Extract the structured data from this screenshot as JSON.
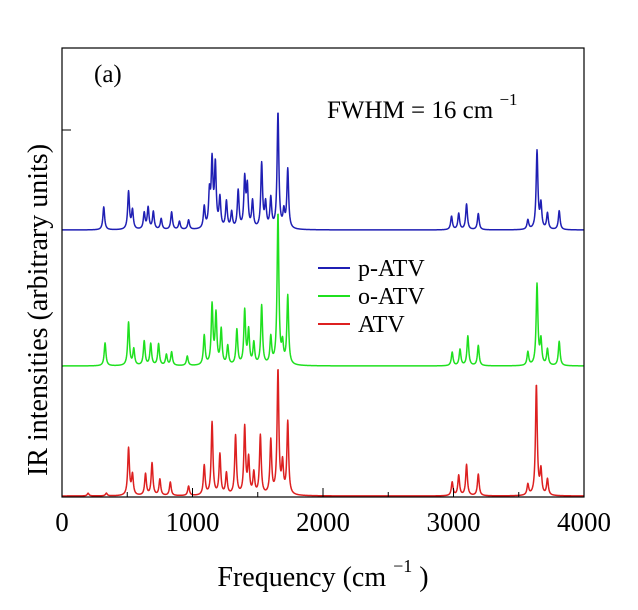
{
  "chart_data": {
    "type": "line",
    "panel_label": "(a)",
    "annotation": {
      "main": "FWHM = 16 cm",
      "superscript": "−1"
    },
    "xlabel": {
      "main": "Frequency (cm",
      "superscript": "−1",
      "close": ")"
    },
    "ylabel": "IR intensities (arbitrary units)",
    "xlim": [
      0,
      4000
    ],
    "x_ticks": [
      0,
      1000,
      2000,
      3000,
      4000
    ],
    "x_tick_labels": [
      "0",
      "1000",
      "2000",
      "3000",
      "4000"
    ],
    "legend_position": "center",
    "series": [
      {
        "name": "p-ATV",
        "color": "#1f1fb4",
        "offset": 2,
        "peaks": [
          [
            320,
            0.17
          ],
          [
            510,
            0.28
          ],
          [
            540,
            0.14
          ],
          [
            630,
            0.12
          ],
          [
            660,
            0.16
          ],
          [
            700,
            0.13
          ],
          [
            760,
            0.08
          ],
          [
            840,
            0.13
          ],
          [
            900,
            0.06
          ],
          [
            970,
            0.07
          ],
          [
            1090,
            0.16
          ],
          [
            1130,
            0.25
          ],
          [
            1150,
            0.48
          ],
          [
            1175,
            0.46
          ],
          [
            1210,
            0.22
          ],
          [
            1260,
            0.2
          ],
          [
            1300,
            0.12
          ],
          [
            1350,
            0.28
          ],
          [
            1400,
            0.36
          ],
          [
            1420,
            0.3
          ],
          [
            1460,
            0.2
          ],
          [
            1530,
            0.48
          ],
          [
            1560,
            0.18
          ],
          [
            1600,
            0.22
          ],
          [
            1655,
            0.86
          ],
          [
            1700,
            0.12
          ],
          [
            1730,
            0.44
          ],
          [
            2985,
            0.1
          ],
          [
            3040,
            0.12
          ],
          [
            3100,
            0.19
          ],
          [
            3190,
            0.12
          ],
          [
            3570,
            0.07
          ],
          [
            3640,
            0.58
          ],
          [
            3670,
            0.18
          ],
          [
            3720,
            0.12
          ],
          [
            3810,
            0.14
          ]
        ]
      },
      {
        "name": "o-ATV",
        "color": "#1fe01f",
        "offset": 1,
        "peaks": [
          [
            330,
            0.17
          ],
          [
            510,
            0.32
          ],
          [
            550,
            0.12
          ],
          [
            630,
            0.18
          ],
          [
            680,
            0.16
          ],
          [
            740,
            0.16
          ],
          [
            800,
            0.08
          ],
          [
            840,
            0.1
          ],
          [
            960,
            0.07
          ],
          [
            1090,
            0.22
          ],
          [
            1150,
            0.44
          ],
          [
            1180,
            0.37
          ],
          [
            1220,
            0.26
          ],
          [
            1270,
            0.14
          ],
          [
            1340,
            0.26
          ],
          [
            1400,
            0.4
          ],
          [
            1430,
            0.25
          ],
          [
            1470,
            0.16
          ],
          [
            1530,
            0.44
          ],
          [
            1600,
            0.2
          ],
          [
            1655,
            1.12
          ],
          [
            1690,
            0.14
          ],
          [
            1730,
            0.51
          ],
          [
            2990,
            0.1
          ],
          [
            3050,
            0.12
          ],
          [
            3110,
            0.22
          ],
          [
            3190,
            0.15
          ],
          [
            3570,
            0.1
          ],
          [
            3640,
            0.6
          ],
          [
            3670,
            0.18
          ],
          [
            3720,
            0.12
          ],
          [
            3810,
            0.18
          ]
        ]
      },
      {
        "name": "ATV",
        "color": "#dd2020",
        "offset": 0,
        "peaks": [
          [
            200,
            0.02
          ],
          [
            340,
            0.02
          ],
          [
            510,
            0.35
          ],
          [
            540,
            0.15
          ],
          [
            640,
            0.16
          ],
          [
            690,
            0.24
          ],
          [
            750,
            0.12
          ],
          [
            830,
            0.1
          ],
          [
            970,
            0.07
          ],
          [
            1090,
            0.22
          ],
          [
            1150,
            0.54
          ],
          [
            1210,
            0.3
          ],
          [
            1260,
            0.16
          ],
          [
            1330,
            0.44
          ],
          [
            1400,
            0.5
          ],
          [
            1430,
            0.26
          ],
          [
            1470,
            0.16
          ],
          [
            1520,
            0.44
          ],
          [
            1600,
            0.4
          ],
          [
            1655,
            0.92
          ],
          [
            1690,
            0.22
          ],
          [
            1730,
            0.54
          ],
          [
            2990,
            0.1
          ],
          [
            3040,
            0.15
          ],
          [
            3100,
            0.23
          ],
          [
            3190,
            0.16
          ],
          [
            3570,
            0.08
          ],
          [
            3635,
            0.82
          ],
          [
            3670,
            0.18
          ],
          [
            3720,
            0.12
          ]
        ]
      }
    ],
    "fwhm_cm1": 16
  }
}
